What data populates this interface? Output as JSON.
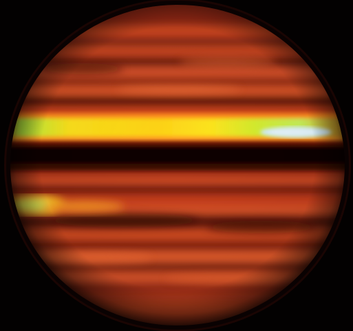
{
  "image": {
    "subject": "planet-thermal-infrared",
    "palette": {
      "background": "#030101",
      "limb": "#3a0a04",
      "base_band": "#b8341a",
      "light_band": "#e0562a",
      "dark_band": "#4a0d06",
      "hot_yellow": "#ffd21a",
      "hot_green": "#9cf23a",
      "hottest": "#bfe8ff"
    }
  }
}
